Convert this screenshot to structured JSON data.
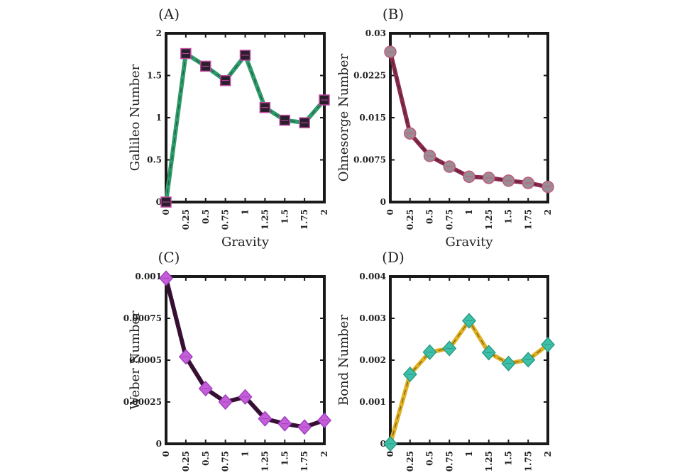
{
  "chart_data": [
    {
      "panel": "(A)",
      "type": "line",
      "xlabel": "Gravity",
      "ylabel": "Gallileo Number",
      "x": [
        0,
        0.25,
        0.5,
        0.75,
        1,
        1.25,
        1.5,
        1.75,
        2
      ],
      "xticklabels": [
        "0",
        "0.25",
        "0.5",
        "0.75",
        "1",
        "1.25",
        "1.5",
        "1.75",
        "2"
      ],
      "y": [
        0,
        1.76,
        1.61,
        1.44,
        1.74,
        1.12,
        0.97,
        0.94,
        1.21
      ],
      "xlim": [
        0,
        2
      ],
      "ylim": [
        0,
        2
      ],
      "yticks": [
        0,
        0.5,
        1,
        1.5,
        2
      ],
      "yticklabels": [
        "0",
        "0.5",
        "1",
        "1.5",
        "2"
      ],
      "marker": "square",
      "line_color": "#2e9b6a",
      "marker_color": "#2a1f2c",
      "marker_edge": "#c04aa0"
    },
    {
      "panel": "(B)",
      "type": "line",
      "xlabel": "Gravity",
      "ylabel": "Ohnesorge Number",
      "x": [
        0,
        0.25,
        0.5,
        0.75,
        1,
        1.25,
        1.5,
        1.75,
        2
      ],
      "xticklabels": [
        "0",
        "0.25",
        "0.5",
        "0.75",
        "1",
        "1.25",
        "1.5",
        "1.75",
        "2"
      ],
      "y": [
        0.0267,
        0.0122,
        0.0082,
        0.0063,
        0.0045,
        0.0043,
        0.0038,
        0.0034,
        0.0027
      ],
      "xlim": [
        0,
        2
      ],
      "ylim": [
        0,
        0.03
      ],
      "yticks": [
        0,
        0.0075,
        0.015,
        0.0225,
        0.03
      ],
      "yticklabels": [
        "0",
        "0.0075",
        "0.015",
        "0.0225",
        "0.03"
      ],
      "marker": "circle",
      "line_color": "#8a2a4e",
      "marker_color": "#9a8c94",
      "marker_edge": "#c05a7a"
    },
    {
      "panel": "(C)",
      "type": "line",
      "xlabel": "Gravity",
      "ylabel": "Weber Number",
      "x": [
        0,
        0.25,
        0.5,
        0.75,
        1,
        1.25,
        1.5,
        1.75,
        2
      ],
      "xticklabels": [
        "0",
        "0.25",
        "0.5",
        "0.75",
        "1",
        "1.25",
        "1.5",
        "1.75",
        "2"
      ],
      "y": [
        0.00099,
        0.00052,
        0.00033,
        0.00025,
        0.00028,
        0.00015,
        0.00012,
        0.0001,
        0.00014
      ],
      "xlim": [
        0,
        2
      ],
      "ylim": [
        0,
        0.001
      ],
      "yticks": [
        0,
        0.00025,
        0.0005,
        0.00075,
        0.001
      ],
      "yticklabels": [
        "0",
        "0.00025",
        "0.0005",
        "0.00075",
        "0.001"
      ],
      "marker": "diamond",
      "line_color": "#3a0f36",
      "marker_color": "#c55ed8",
      "marker_edge": "#a040c0"
    },
    {
      "panel": "(D)",
      "type": "line",
      "xlabel": "Gravity",
      "ylabel": "Bond Number",
      "x": [
        0,
        0.25,
        0.5,
        0.75,
        1,
        1.25,
        1.5,
        1.75,
        2
      ],
      "xticklabels": [
        "0",
        "0.25",
        "0.5",
        "0.75",
        "1",
        "1.25",
        "1.5",
        "1.75",
        "2"
      ],
      "y": [
        0,
        0.00166,
        0.00219,
        0.00228,
        0.00294,
        0.00218,
        0.00192,
        0.00201,
        0.00237
      ],
      "xlim": [
        0,
        2
      ],
      "ylim": [
        0,
        0.004
      ],
      "yticks": [
        0,
        0.001,
        0.002,
        0.003,
        0.004
      ],
      "yticklabels": [
        "0",
        "0.001",
        "0.002",
        "0.003",
        "0.004"
      ],
      "marker": "diamond",
      "line_color": "#e0b020",
      "marker_color": "#3ec0a8",
      "marker_edge": "#2a9a88"
    }
  ]
}
